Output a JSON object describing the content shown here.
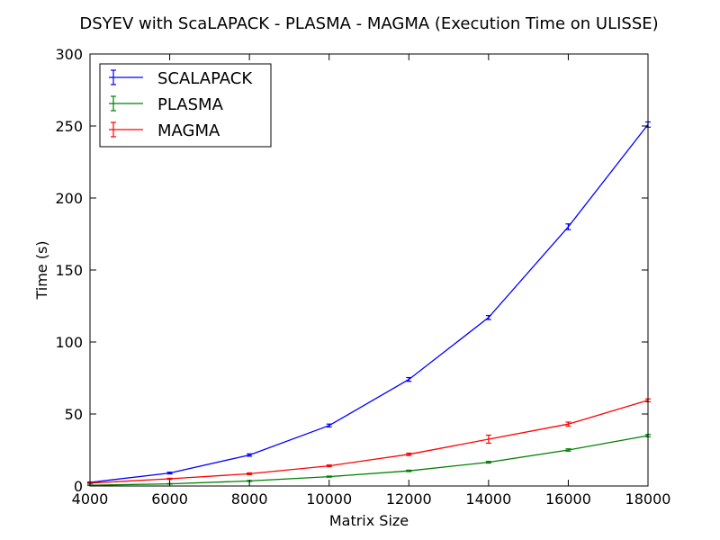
{
  "chart_data": {
    "type": "line",
    "title": "DSYEV with ScaLAPACK - PLASMA - MAGMA (Execution Time on ULISSE)",
    "xlabel": "Matrix Size",
    "ylabel": "Time (s)",
    "xlim": [
      4000,
      18000
    ],
    "ylim": [
      0,
      300
    ],
    "xticks": [
      "4000",
      "6000",
      "8000",
      "10000",
      "12000",
      "14000",
      "16000",
      "18000"
    ],
    "yticks": [
      "0",
      "50",
      "100",
      "150",
      "200",
      "250",
      "300"
    ],
    "grid": false,
    "legend_position": "top-left",
    "x": [
      4000,
      6000,
      8000,
      10000,
      12000,
      14000,
      16000,
      18000
    ],
    "series": [
      {
        "name": "SCALAPACK",
        "color": "#0000ff",
        "values": [
          2.5,
          9,
          21.5,
          42,
          74,
          117,
          180,
          251
        ],
        "errors": [
          0.3,
          0.6,
          0.8,
          1,
          1.3,
          1.4,
          2,
          1.8
        ]
      },
      {
        "name": "PLASMA",
        "color": "#008000",
        "values": [
          0.5,
          1.5,
          3.5,
          6.5,
          10.5,
          16.5,
          25,
          35
        ],
        "errors": [
          0.2,
          0.2,
          0.3,
          0.4,
          0.5,
          0.6,
          0.8,
          0.8
        ]
      },
      {
        "name": "MAGMA",
        "color": "#ff0000",
        "values": [
          2,
          5,
          8.5,
          14,
          22,
          32.5,
          43,
          59.5
        ],
        "errors": [
          0.3,
          0.4,
          0.6,
          0.6,
          0.8,
          2.8,
          1.4,
          1
        ]
      }
    ]
  }
}
